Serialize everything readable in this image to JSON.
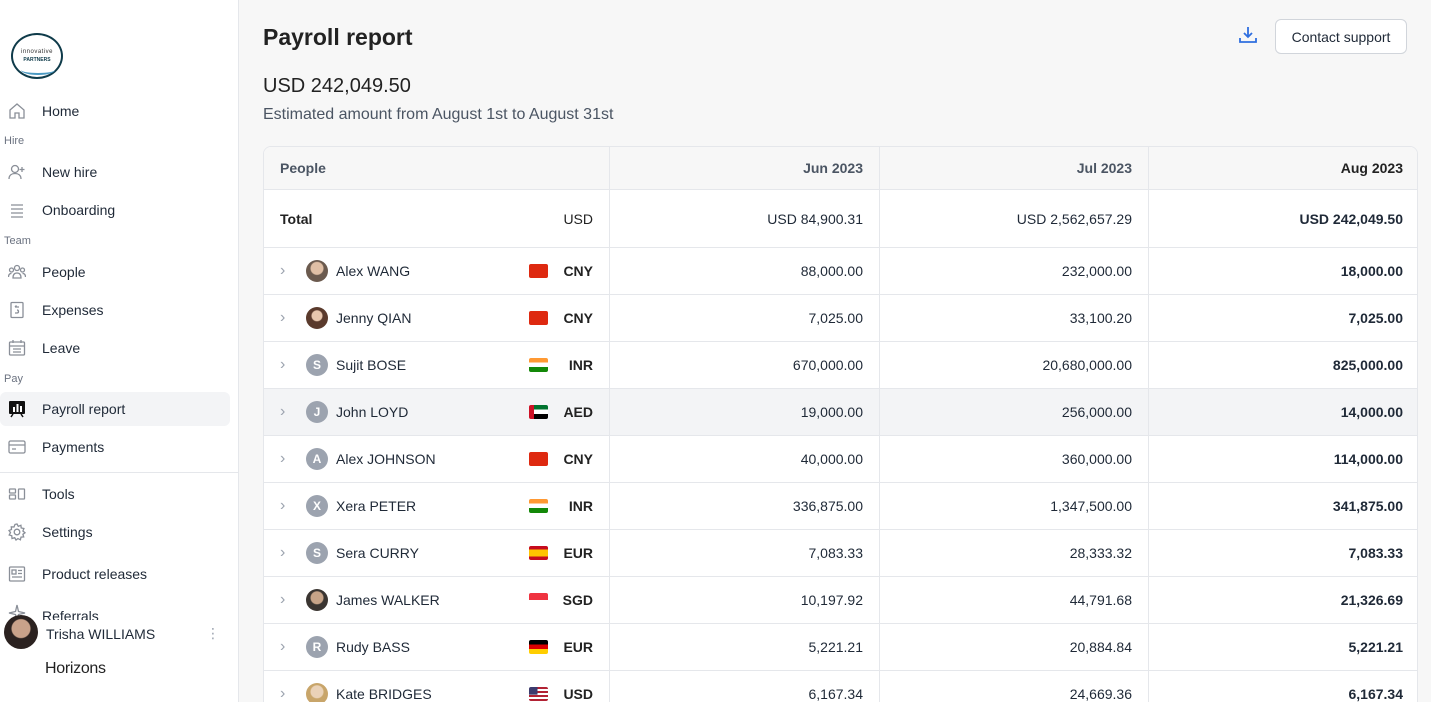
{
  "sidebar": {
    "logo": {
      "line1": "innovative",
      "line2": "PARTNERS"
    },
    "sections": {
      "hire": "Hire",
      "team": "Team",
      "pay": "Pay"
    },
    "items": {
      "home": "Home",
      "new_hire": "New hire",
      "onboarding": "Onboarding",
      "people": "People",
      "expenses": "Expenses",
      "leave": "Leave",
      "payroll_report": "Payroll report",
      "payments": "Payments",
      "tools": "Tools",
      "settings": "Settings",
      "product_releases": "Product releases",
      "referrals": "Referrals"
    },
    "user": {
      "name": "Trisha WILLIAMS"
    },
    "brand": "Horizons"
  },
  "header": {
    "title": "Payroll report",
    "support_label": "Contact support"
  },
  "summary": {
    "amount": "USD 242,049.50",
    "period": "Estimated amount from August 1st to August 31st"
  },
  "table": {
    "columns": [
      "People",
      "Jun 2023",
      "Jul 2023",
      "Aug 2023"
    ],
    "total": {
      "label": "Total",
      "currency": "USD",
      "jun": "USD 84,900.31",
      "jul": "USD 2,562,657.29",
      "aug": "USD 242,049.50"
    },
    "rows": [
      {
        "name": "Alex WANG",
        "initial": "",
        "currency": "CNY",
        "jun": "88,000.00",
        "jul": "232,000.00",
        "aug": "18,000.00"
      },
      {
        "name": "Jenny QIAN",
        "initial": "",
        "currency": "CNY",
        "jun": "7,025.00",
        "jul": "33,100.20",
        "aug": "7,025.00"
      },
      {
        "name": "Sujit BOSE",
        "initial": "S",
        "currency": "INR",
        "jun": "670,000.00",
        "jul": "20,680,000.00",
        "aug": "825,000.00"
      },
      {
        "name": "John LOYD",
        "initial": "J",
        "currency": "AED",
        "jun": "19,000.00",
        "jul": "256,000.00",
        "aug": "14,000.00"
      },
      {
        "name": "Alex JOHNSON",
        "initial": "A",
        "currency": "CNY",
        "jun": "40,000.00",
        "jul": "360,000.00",
        "aug": "114,000.00"
      },
      {
        "name": "Xera PETER",
        "initial": "X",
        "currency": "INR",
        "jun": "336,875.00",
        "jul": "1,347,500.00",
        "aug": "341,875.00"
      },
      {
        "name": "Sera CURRY",
        "initial": "S",
        "currency": "EUR",
        "jun": "7,083.33",
        "jul": "28,333.32",
        "aug": "7,083.33"
      },
      {
        "name": "James WALKER",
        "initial": "",
        "currency": "SGD",
        "jun": "10,197.92",
        "jul": "44,791.68",
        "aug": "21,326.69"
      },
      {
        "name": "Rudy BASS",
        "initial": "R",
        "currency": "EUR",
        "jun": "5,221.21",
        "jul": "20,884.84",
        "aug": "5,221.21"
      },
      {
        "name": "Kate BRIDGES",
        "initial": "",
        "currency": "USD",
        "jun": "6,167.34",
        "jul": "24,669.36",
        "aug": "6,167.34"
      }
    ]
  },
  "colors": {
    "accent": "#2f6fe0",
    "active_bg": "#f3f4f6",
    "border": "#e5e7eb"
  }
}
